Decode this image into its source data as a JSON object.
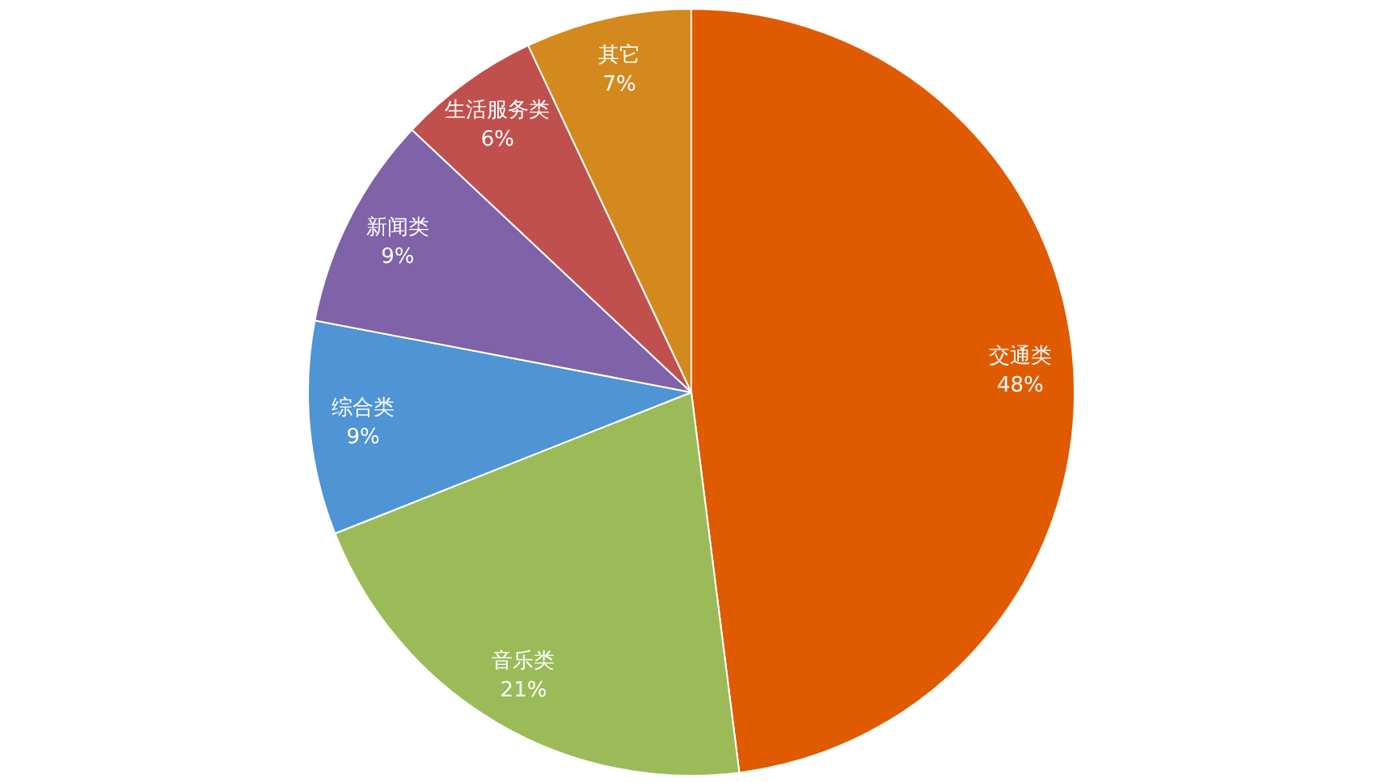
{
  "chart_data": {
    "type": "pie",
    "categories": [
      "交通类",
      "音乐类",
      "综合类",
      "新闻类",
      "生活服务类",
      "其它"
    ],
    "values": [
      48,
      21,
      9,
      9,
      6,
      7
    ],
    "value_labels": [
      "48%",
      "21%",
      "9%",
      "9%",
      "6%",
      "7%"
    ],
    "colors": [
      "#e05a00",
      "#9bbb59",
      "#4f94d4",
      "#7f62a8",
      "#c0504d",
      "#d4891e"
    ]
  }
}
